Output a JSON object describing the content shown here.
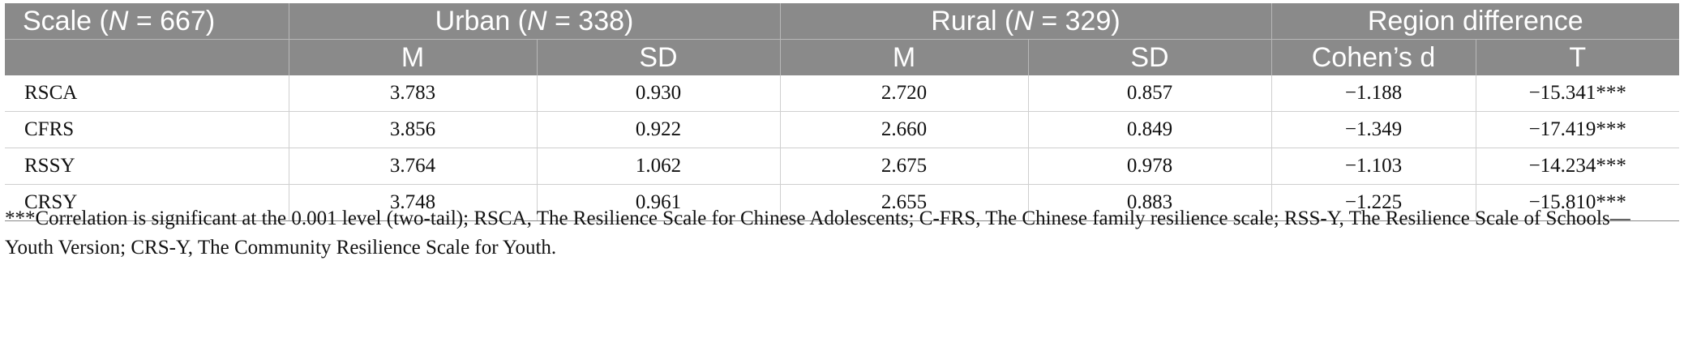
{
  "header": {
    "row1": {
      "scale": "Scale (",
      "scale_n_label": "N",
      "scale_n_value": " = 667)",
      "urban": "Urban (",
      "urban_n_label": "N",
      "urban_n_value": " = 338)",
      "rural": "Rural (",
      "rural_n_label": "N",
      "rural_n_value": " = 329)",
      "region": "Region difference"
    },
    "row2": {
      "urban_m": "M",
      "urban_sd": "SD",
      "rural_m": "M",
      "rural_sd": "SD",
      "cohens_d": "Cohen’s d",
      "t": "T"
    }
  },
  "rows": [
    {
      "scale": "RSCA",
      "urban_m": "3.783",
      "urban_sd": "0.930",
      "rural_m": "2.720",
      "rural_sd": "0.857",
      "d": "−1.188",
      "t": "−15.341***"
    },
    {
      "scale": "CFRS",
      "urban_m": "3.856",
      "urban_sd": "0.922",
      "rural_m": "2.660",
      "rural_sd": "0.849",
      "d": "−1.349",
      "t": "−17.419***"
    },
    {
      "scale": "RSSY",
      "urban_m": "3.764",
      "urban_sd": "1.062",
      "rural_m": "2.675",
      "rural_sd": "0.978",
      "d": "−1.103",
      "t": "−14.234***"
    },
    {
      "scale": "CRSY",
      "urban_m": "3.748",
      "urban_sd": "0.961",
      "rural_m": "2.655",
      "rural_sd": "0.883",
      "d": "−1.225",
      "t": "−15.810***"
    }
  ],
  "footnote": "***Correlation is significant at the 0.001 level (two-tail); RSCA, The Resilience Scale for Chinese Adolescents; C-FRS, The Chinese family resilience scale; RSS-Y, The Resilience Scale of Schools—Youth Version; CRS-Y, The Community Resilience Scale for Youth."
}
